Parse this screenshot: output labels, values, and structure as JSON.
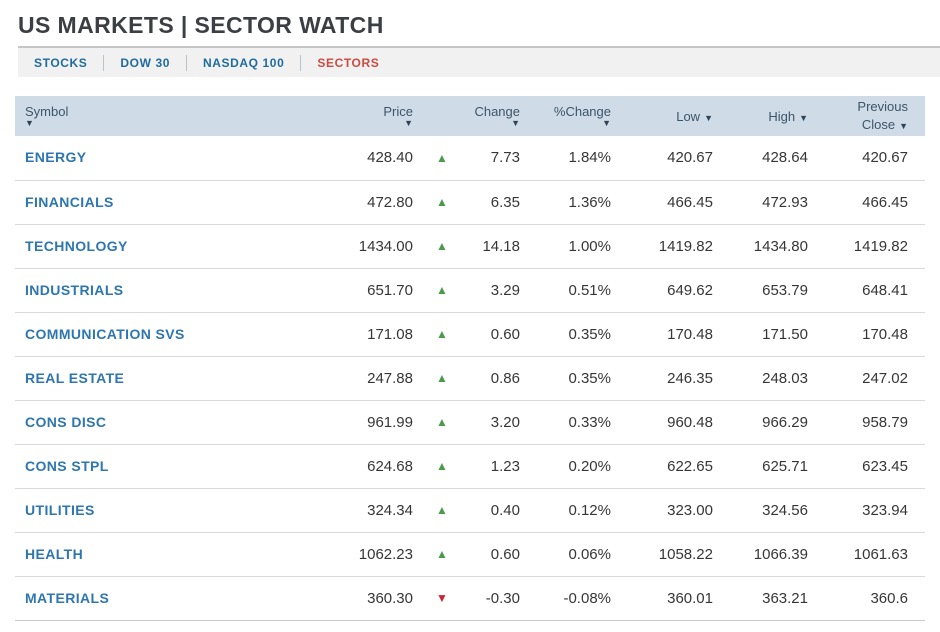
{
  "header": {
    "title": "US MARKETS | SECTOR WATCH"
  },
  "tabs": [
    {
      "label": "STOCKS",
      "active": false
    },
    {
      "label": "DOW 30",
      "active": false
    },
    {
      "label": "NASDAQ 100",
      "active": false
    },
    {
      "label": "SECTORS",
      "active": true
    }
  ],
  "table": {
    "sort_arrow": "▼",
    "columns": [
      {
        "label": "Symbol"
      },
      {
        "label": "Price"
      },
      {
        "label": "Change"
      },
      {
        "label": "%Change"
      },
      {
        "label": "Low"
      },
      {
        "label": "High"
      },
      {
        "label": "Previous Close"
      }
    ],
    "rows": [
      {
        "symbol": "ENERGY",
        "price": "428.40",
        "arrow": "▲",
        "direction": "up",
        "change": "7.73",
        "pct_change": "1.84%",
        "low": "420.67",
        "high": "428.64",
        "prev_close": "420.67"
      },
      {
        "symbol": "FINANCIALS",
        "price": "472.80",
        "arrow": "▲",
        "direction": "up",
        "change": "6.35",
        "pct_change": "1.36%",
        "low": "466.45",
        "high": "472.93",
        "prev_close": "466.45"
      },
      {
        "symbol": "TECHNOLOGY",
        "price": "1434.00",
        "arrow": "▲",
        "direction": "up",
        "change": "14.18",
        "pct_change": "1.00%",
        "low": "1419.82",
        "high": "1434.80",
        "prev_close": "1419.82"
      },
      {
        "symbol": "INDUSTRIALS",
        "price": "651.70",
        "arrow": "▲",
        "direction": "up",
        "change": "3.29",
        "pct_change": "0.51%",
        "low": "649.62",
        "high": "653.79",
        "prev_close": "648.41"
      },
      {
        "symbol": "COMMUNICATION SVS",
        "price": "171.08",
        "arrow": "▲",
        "direction": "up",
        "change": "0.60",
        "pct_change": "0.35%",
        "low": "170.48",
        "high": "171.50",
        "prev_close": "170.48"
      },
      {
        "symbol": "REAL ESTATE",
        "price": "247.88",
        "arrow": "▲",
        "direction": "up",
        "change": "0.86",
        "pct_change": "0.35%",
        "low": "246.35",
        "high": "248.03",
        "prev_close": "247.02"
      },
      {
        "symbol": "CONS DISC",
        "price": "961.99",
        "arrow": "▲",
        "direction": "up",
        "change": "3.20",
        "pct_change": "0.33%",
        "low": "960.48",
        "high": "966.29",
        "prev_close": "958.79"
      },
      {
        "symbol": "CONS STPL",
        "price": "624.68",
        "arrow": "▲",
        "direction": "up",
        "change": "1.23",
        "pct_change": "0.20%",
        "low": "622.65",
        "high": "625.71",
        "prev_close": "623.45"
      },
      {
        "symbol": "UTILITIES",
        "price": "324.34",
        "arrow": "▲",
        "direction": "up",
        "change": "0.40",
        "pct_change": "0.12%",
        "low": "323.00",
        "high": "324.56",
        "prev_close": "323.94"
      },
      {
        "symbol": "HEALTH",
        "price": "1062.23",
        "arrow": "▲",
        "direction": "up",
        "change": "0.60",
        "pct_change": "0.06%",
        "low": "1058.22",
        "high": "1066.39",
        "prev_close": "1061.63"
      },
      {
        "symbol": "MATERIALS",
        "price": "360.30",
        "arrow": "▼",
        "direction": "down",
        "change": "-0.30",
        "pct_change": "-0.08%",
        "low": "360.01",
        "high": "363.21",
        "prev_close": "360.6"
      }
    ]
  },
  "colors": {
    "accent_blue": "#2d76b0",
    "active_tab_red": "#cb4b42",
    "up_green": "#4b9b4e",
    "down_red": "#c9243a",
    "header_bg": "#cfdce8"
  }
}
